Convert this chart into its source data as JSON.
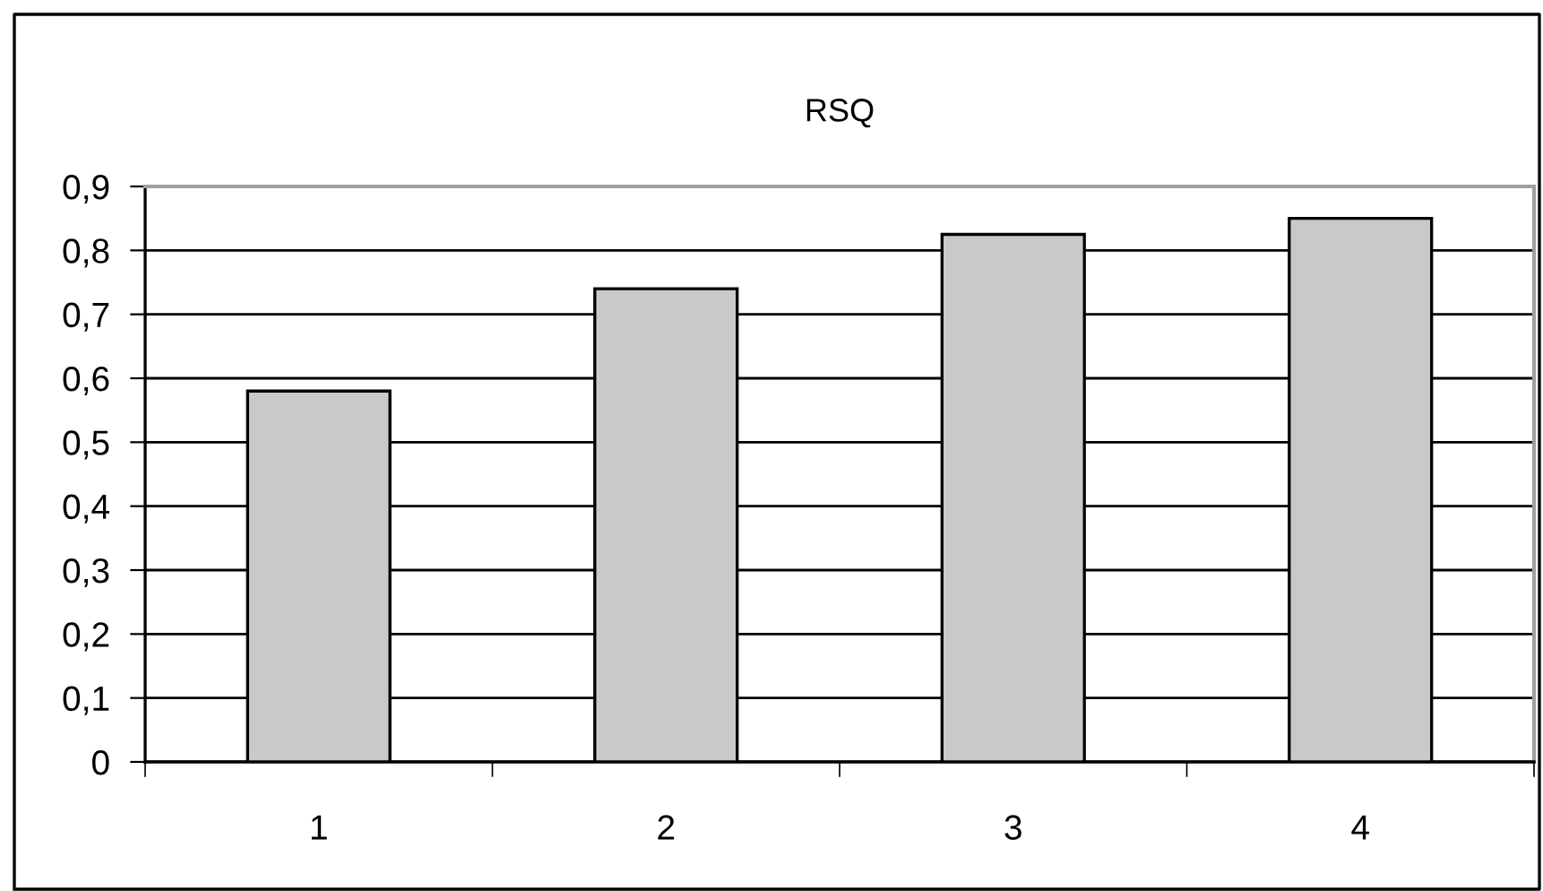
{
  "chart_data": {
    "type": "bar",
    "title": "RSQ",
    "categories": [
      "1",
      "2",
      "3",
      "4"
    ],
    "values": [
      0.58,
      0.74,
      0.825,
      0.85
    ],
    "color": "#c8c9cb",
    "ylim": [
      0,
      0.9
    ],
    "yticks": [
      0,
      {
        "value": 0.1,
        "label": "0,1"
      },
      {
        "value": 0.2,
        "label": "0,2"
      },
      {
        "value": 0.3,
        "label": "0,3"
      },
      {
        "value": 0.4,
        "label": "0,4"
      },
      {
        "value": 0.5,
        "label": "0,5"
      },
      {
        "value": 0.6,
        "label": "0,6"
      },
      {
        "value": 0.7,
        "label": "0,7"
      },
      {
        "value": 0.8,
        "label": "0,8"
      },
      {
        "value": 0.9,
        "label": "0,9"
      }
    ],
    "grid": "y"
  }
}
